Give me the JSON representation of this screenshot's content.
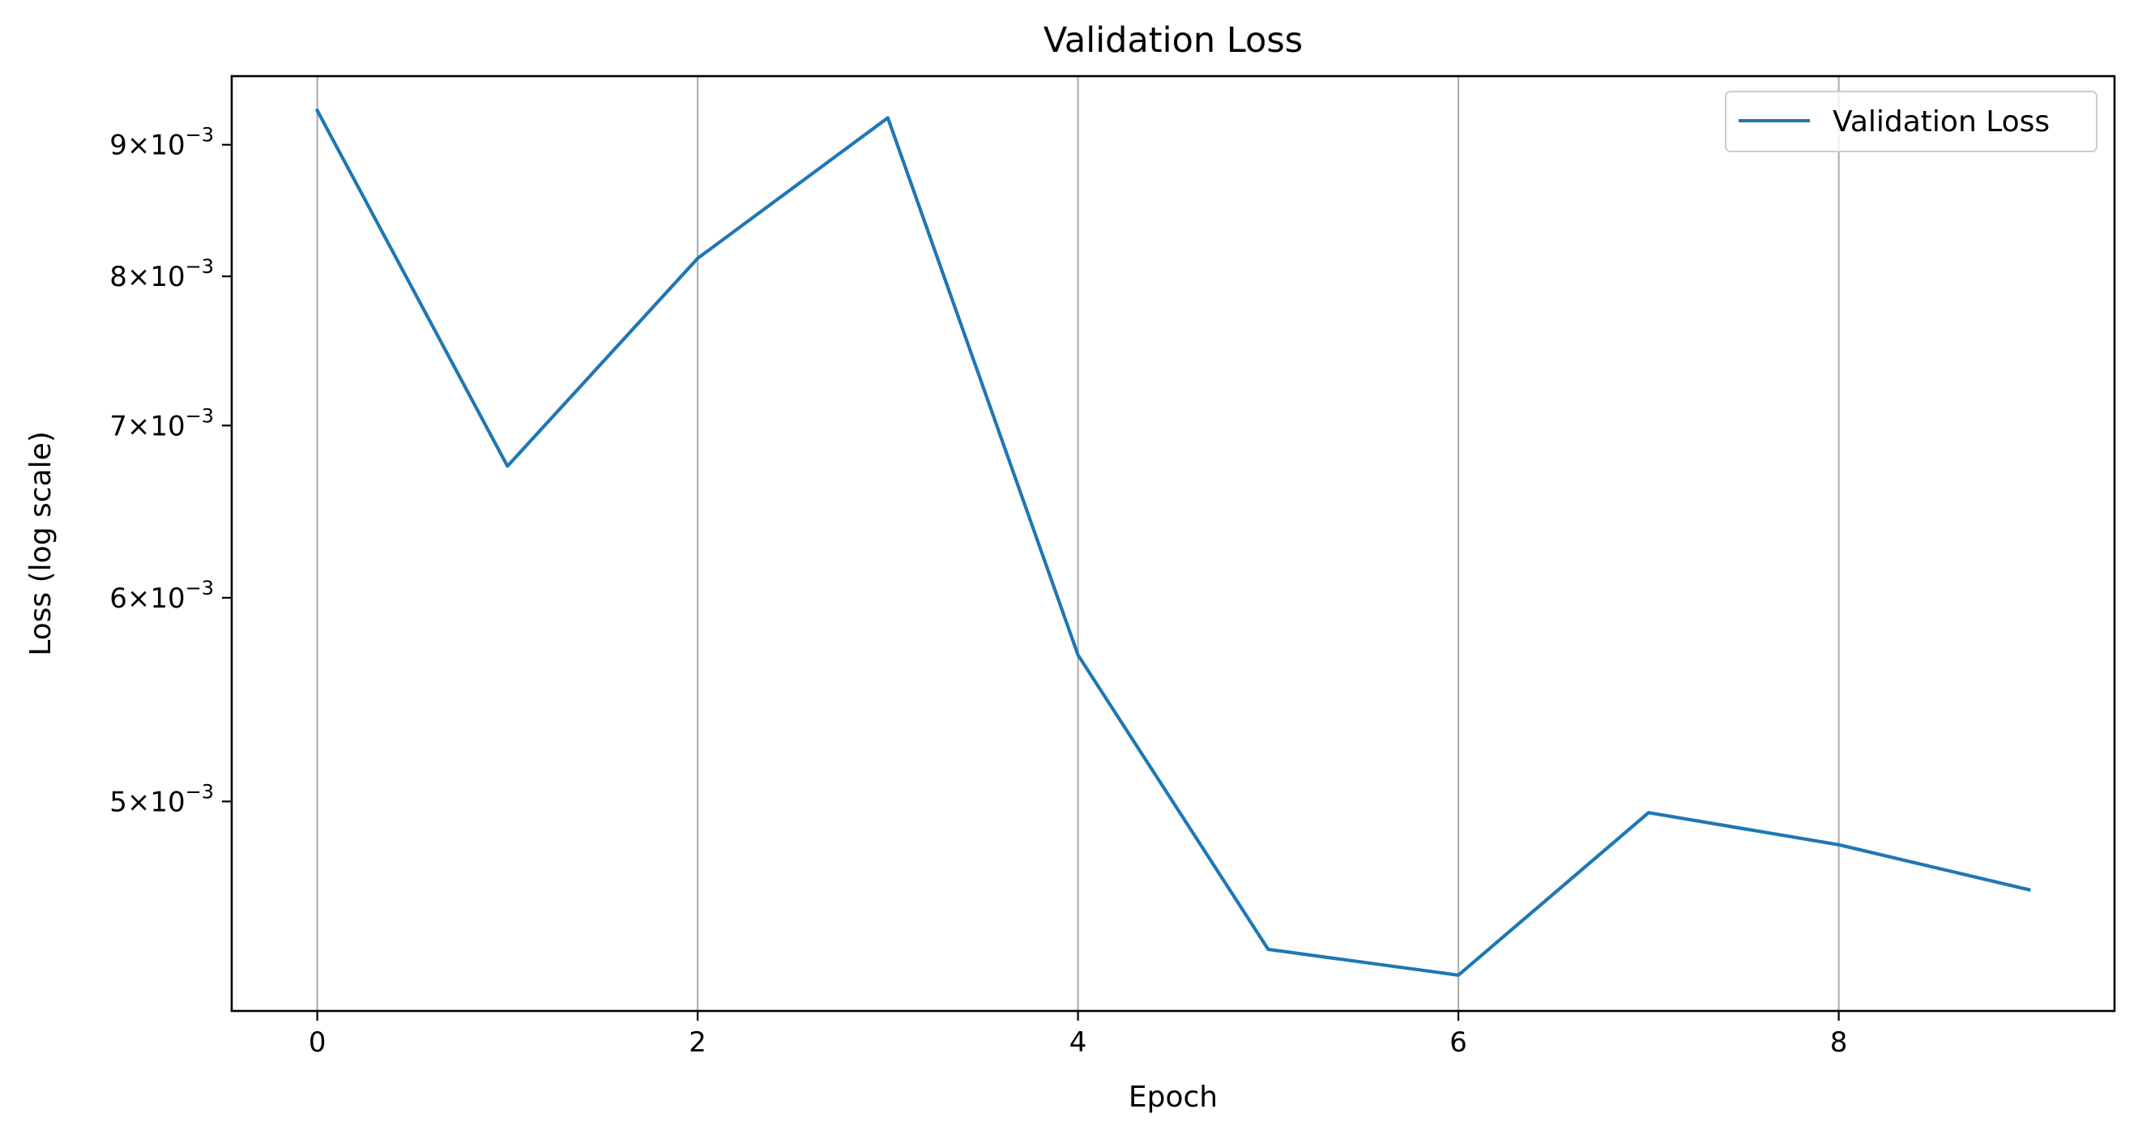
{
  "chart_data": {
    "type": "line",
    "title": "Validation Loss",
    "xlabel": "Epoch",
    "ylabel": "Loss (log scale)",
    "yscale": "log",
    "x": [
      0,
      1,
      2,
      3,
      4,
      5,
      6,
      7,
      8,
      9
    ],
    "series": [
      {
        "name": "Validation Loss",
        "color": "#1f77b4",
        "values": [
          0.00928,
          0.00675,
          0.00813,
          0.00922,
          0.0057,
          0.00438,
          0.00428,
          0.00495,
          0.00481,
          0.00462
        ]
      }
    ],
    "xlim": [
      -0.45,
      9.45
    ],
    "ylim": [
      0.004145,
      0.00957
    ],
    "xticks": [
      {
        "value": 0,
        "label": "0"
      },
      {
        "value": 2,
        "label": "2"
      },
      {
        "value": 4,
        "label": "4"
      },
      {
        "value": 6,
        "label": "6"
      },
      {
        "value": 8,
        "label": "8"
      }
    ],
    "yticks": [
      {
        "value": 0.005,
        "mantissa": "5",
        "exponent": "−3"
      },
      {
        "value": 0.006,
        "mantissa": "6",
        "exponent": "−3"
      },
      {
        "value": 0.007,
        "mantissa": "7",
        "exponent": "−3"
      },
      {
        "value": 0.008,
        "mantissa": "8",
        "exponent": "−3"
      },
      {
        "value": 0.009,
        "mantissa": "9",
        "exponent": "−3"
      }
    ],
    "grid": "x-major",
    "legend_position": "top-right"
  }
}
